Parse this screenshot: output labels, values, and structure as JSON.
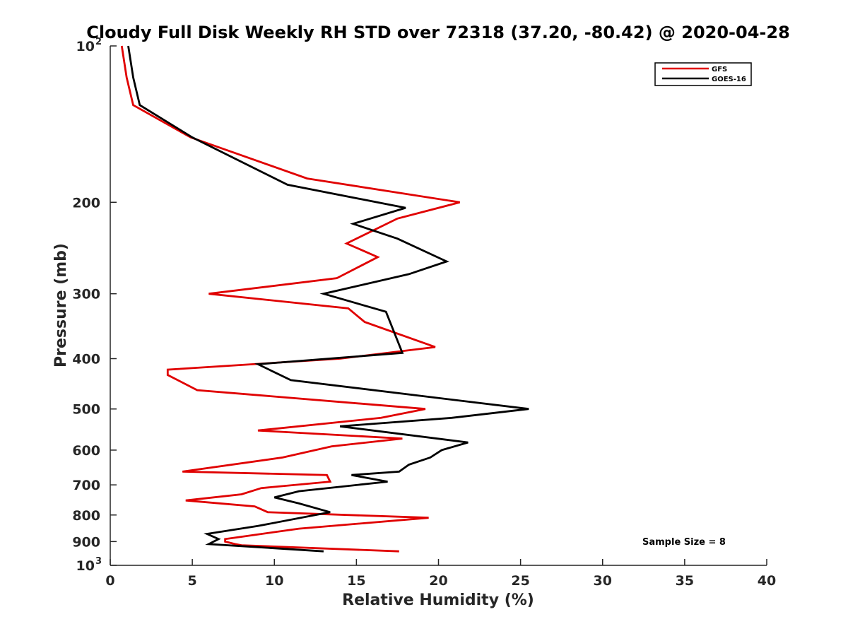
{
  "chart_data": {
    "type": "line",
    "title": "Cloudy Full Disk Weekly RH STD over 72318 (37.20, -80.42) @ 2020-04-28",
    "xlabel": "Relative Humidity (%)",
    "ylabel": "Pressure (mb)",
    "xlim": [
      0,
      40
    ],
    "ylim": [
      100,
      1000
    ],
    "yscale": "log",
    "yreversed": false,
    "x_ticks": [
      "0",
      "5",
      "10",
      "15",
      "20",
      "25",
      "30",
      "35",
      "40"
    ],
    "y_ticks": [
      {
        "value": 100,
        "label": "10",
        "exp": "2"
      },
      {
        "value": 200,
        "label": "200"
      },
      {
        "value": 300,
        "label": "300"
      },
      {
        "value": 400,
        "label": "400"
      },
      {
        "value": 500,
        "label": "500"
      },
      {
        "value": 600,
        "label": "600"
      },
      {
        "value": 700,
        "label": "700"
      },
      {
        "value": 800,
        "label": "800"
      },
      {
        "value": 900,
        "label": "900"
      },
      {
        "value": 1000,
        "label": "10",
        "exp": "3"
      }
    ],
    "legend_position": "top-right",
    "annotation": "Sample Size = 8",
    "series": [
      {
        "name": "GFS",
        "color": "#e00000",
        "points": [
          [
            0.7,
            100
          ],
          [
            1.0,
            115
          ],
          [
            1.4,
            130
          ],
          [
            4.9,
            150
          ],
          [
            12.0,
            180
          ],
          [
            21.3,
            200
          ],
          [
            17.5,
            215
          ],
          [
            14.4,
            240
          ],
          [
            16.3,
            255
          ],
          [
            13.8,
            280
          ],
          [
            6.0,
            300
          ],
          [
            14.5,
            320
          ],
          [
            15.5,
            340
          ],
          [
            19.8,
            380
          ],
          [
            14.0,
            400
          ],
          [
            3.5,
            420
          ],
          [
            3.5,
            430
          ],
          [
            5.3,
            460
          ],
          [
            19.2,
            500
          ],
          [
            16.5,
            520
          ],
          [
            9.0,
            550
          ],
          [
            17.8,
            570
          ],
          [
            13.5,
            590
          ],
          [
            10.5,
            620
          ],
          [
            4.4,
            660
          ],
          [
            13.2,
            670
          ],
          [
            13.4,
            690
          ],
          [
            9.2,
            710
          ],
          [
            8.0,
            730
          ],
          [
            4.6,
            750
          ],
          [
            8.8,
            770
          ],
          [
            9.6,
            790
          ],
          [
            19.4,
            810
          ],
          [
            11.5,
            850
          ],
          [
            7.0,
            890
          ],
          [
            7.0,
            900
          ],
          [
            7.6,
            910
          ],
          [
            8.0,
            915
          ],
          [
            17.6,
            940
          ]
        ]
      },
      {
        "name": "GOES-16",
        "color": "#000000",
        "points": [
          [
            1.1,
            100
          ],
          [
            1.4,
            115
          ],
          [
            1.8,
            130
          ],
          [
            5.0,
            150
          ],
          [
            10.8,
            185
          ],
          [
            18.0,
            205
          ],
          [
            14.8,
            220
          ],
          [
            17.5,
            235
          ],
          [
            20.5,
            260
          ],
          [
            18.2,
            275
          ],
          [
            13.0,
            300
          ],
          [
            16.8,
            325
          ],
          [
            17.8,
            390
          ],
          [
            9.0,
            410
          ],
          [
            11.0,
            440
          ],
          [
            25.5,
            500
          ],
          [
            20.8,
            520
          ],
          [
            14.0,
            540
          ],
          [
            21.8,
            580
          ],
          [
            20.2,
            600
          ],
          [
            19.5,
            620
          ],
          [
            18.2,
            640
          ],
          [
            17.6,
            660
          ],
          [
            14.7,
            670
          ],
          [
            16.9,
            690
          ],
          [
            11.5,
            720
          ],
          [
            10.0,
            740
          ],
          [
            11.5,
            760
          ],
          [
            13.4,
            790
          ],
          [
            9.0,
            840
          ],
          [
            5.9,
            870
          ],
          [
            6.6,
            890
          ],
          [
            6.0,
            910
          ],
          [
            13.0,
            940
          ]
        ]
      }
    ]
  }
}
